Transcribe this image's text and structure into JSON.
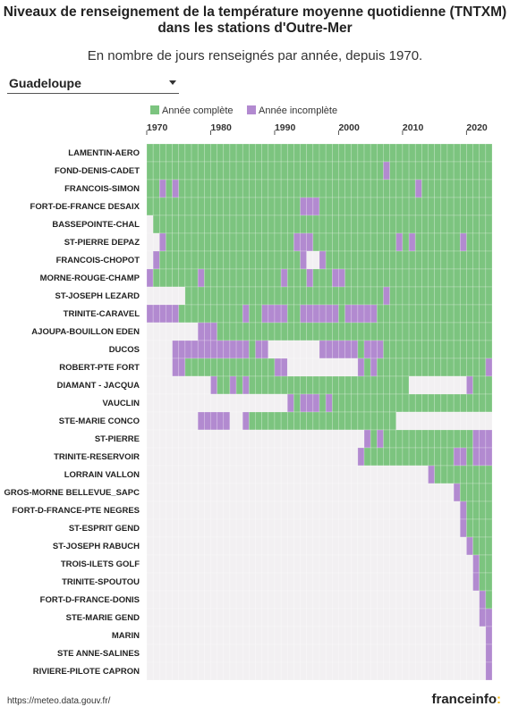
{
  "title": "Niveaux de renseignement de la température moyenne quotidienne (TNTXM) dans les stations d'Outre-Mer",
  "subtitle": "En nombre de jours renseignés par année, depuis 1970.",
  "selector": {
    "value": "Guadeloupe"
  },
  "source": "https://meteo.data.gouv.fr/",
  "brand": {
    "name": "franceinfo",
    "suffix": ":"
  },
  "colors": {
    "complete": "#7cc47f",
    "incomplete": "#b28ad0",
    "empty": "#f2f0f2"
  },
  "chart_data": {
    "type": "heatmap",
    "x_start": 1970,
    "x_end": 2023,
    "x_ticks": [
      1970,
      1980,
      1990,
      2000,
      2010,
      2020
    ],
    "legend": [
      {
        "key": "C",
        "label": "Année complète"
      },
      {
        "key": "I",
        "label": "Année incomplète"
      }
    ],
    "codes": {
      "C": "Année complète",
      "I": "Année incomplète",
      "E": "aucune donnée"
    },
    "rows": [
      {
        "station": "LAMENTIN-AERO",
        "spans": [
          [
            "C",
            1970,
            2023
          ]
        ]
      },
      {
        "station": "FOND-DENIS-CADET",
        "spans": [
          [
            "C",
            1970,
            2006
          ],
          [
            "I",
            2007,
            2007
          ],
          [
            "C",
            2008,
            2023
          ]
        ]
      },
      {
        "station": "FRANCOIS-SIMON",
        "spans": [
          [
            "C",
            1970,
            1971
          ],
          [
            "I",
            1972,
            1972
          ],
          [
            "C",
            1973,
            1973
          ],
          [
            "I",
            1974,
            1974
          ],
          [
            "C",
            1975,
            2011
          ],
          [
            "I",
            2012,
            2012
          ],
          [
            "C",
            2013,
            2023
          ]
        ]
      },
      {
        "station": "FORT-DE-FRANCE DESAIX",
        "spans": [
          [
            "C",
            1970,
            1993
          ],
          [
            "I",
            1994,
            1996
          ],
          [
            "C",
            1997,
            2023
          ]
        ]
      },
      {
        "station": "BASSEPOINTE-CHAL",
        "spans": [
          [
            "E",
            1970,
            1970
          ],
          [
            "C",
            1971,
            2023
          ]
        ]
      },
      {
        "station": "ST-PIERRE DEPAZ",
        "spans": [
          [
            "E",
            1970,
            1971
          ],
          [
            "I",
            1972,
            1972
          ],
          [
            "C",
            1973,
            1992
          ],
          [
            "I",
            1993,
            1995
          ],
          [
            "C",
            1996,
            2008
          ],
          [
            "I",
            2009,
            2009
          ],
          [
            "C",
            2010,
            2010
          ],
          [
            "I",
            2011,
            2011
          ],
          [
            "C",
            2012,
            2018
          ],
          [
            "I",
            2019,
            2019
          ],
          [
            "C",
            2020,
            2023
          ]
        ]
      },
      {
        "station": "FRANCOIS-CHOPOT",
        "spans": [
          [
            "E",
            1970,
            1970
          ],
          [
            "I",
            1971,
            1971
          ],
          [
            "C",
            1972,
            1993
          ],
          [
            "I",
            1994,
            1994
          ],
          [
            "E",
            1995,
            1996
          ],
          [
            "I",
            1997,
            1997
          ],
          [
            "C",
            1998,
            2023
          ]
        ]
      },
      {
        "station": "MORNE-ROUGE-CHAMP",
        "spans": [
          [
            "I",
            1970,
            1970
          ],
          [
            "C",
            1971,
            1977
          ],
          [
            "I",
            1978,
            1978
          ],
          [
            "C",
            1979,
            1990
          ],
          [
            "I",
            1991,
            1991
          ],
          [
            "C",
            1992,
            1994
          ],
          [
            "I",
            1995,
            1995
          ],
          [
            "C",
            1996,
            1998
          ],
          [
            "I",
            1999,
            2000
          ],
          [
            "C",
            2001,
            2023
          ]
        ]
      },
      {
        "station": "ST-JOSEPH LEZARD",
        "spans": [
          [
            "E",
            1970,
            1975
          ],
          [
            "C",
            1976,
            2006
          ],
          [
            "I",
            2007,
            2007
          ],
          [
            "C",
            2008,
            2023
          ]
        ]
      },
      {
        "station": "TRINITE-CARAVEL",
        "spans": [
          [
            "I",
            1970,
            1974
          ],
          [
            "C",
            1975,
            1984
          ],
          [
            "I",
            1985,
            1985
          ],
          [
            "C",
            1986,
            1987
          ],
          [
            "I",
            1988,
            1991
          ],
          [
            "C",
            1992,
            1993
          ],
          [
            "I",
            1994,
            1999
          ],
          [
            "C",
            2000,
            2000
          ],
          [
            "I",
            2001,
            2005
          ],
          [
            "C",
            2006,
            2023
          ]
        ]
      },
      {
        "station": "AJOUPA-BOUILLON EDEN",
        "spans": [
          [
            "E",
            1970,
            1977
          ],
          [
            "I",
            1978,
            1980
          ],
          [
            "C",
            1981,
            2023
          ]
        ]
      },
      {
        "station": "DUCOS",
        "spans": [
          [
            "E",
            1970,
            1973
          ],
          [
            "I",
            1974,
            1985
          ],
          [
            "C",
            1986,
            1986
          ],
          [
            "I",
            1987,
            1988
          ],
          [
            "E",
            1989,
            1996
          ],
          [
            "I",
            1997,
            2002
          ],
          [
            "C",
            2003,
            2003
          ],
          [
            "I",
            2004,
            2006
          ],
          [
            "C",
            2007,
            2023
          ]
        ]
      },
      {
        "station": "ROBERT-PTE FORT",
        "spans": [
          [
            "E",
            1970,
            1973
          ],
          [
            "I",
            1974,
            1975
          ],
          [
            "C",
            1976,
            1989
          ],
          [
            "I",
            1990,
            1991
          ],
          [
            "E",
            1992,
            2002
          ],
          [
            "I",
            2003,
            2003
          ],
          [
            "C",
            2004,
            2004
          ],
          [
            "I",
            2005,
            2005
          ],
          [
            "C",
            2006,
            2022
          ],
          [
            "I",
            2023,
            2023
          ]
        ]
      },
      {
        "station": "DIAMANT - JACQUA",
        "spans": [
          [
            "E",
            1970,
            1979
          ],
          [
            "I",
            1980,
            1980
          ],
          [
            "C",
            1981,
            1982
          ],
          [
            "I",
            1983,
            1983
          ],
          [
            "C",
            1984,
            1984
          ],
          [
            "I",
            1985,
            1985
          ],
          [
            "C",
            1986,
            2010
          ],
          [
            "E",
            2011,
            2019
          ],
          [
            "I",
            2020,
            2020
          ],
          [
            "C",
            2021,
            2023
          ]
        ]
      },
      {
        "station": "VAUCLIN",
        "spans": [
          [
            "E",
            1970,
            1991
          ],
          [
            "I",
            1992,
            1992
          ],
          [
            "C",
            1993,
            1993
          ],
          [
            "I",
            1994,
            1996
          ],
          [
            "C",
            1997,
            1997
          ],
          [
            "I",
            1998,
            1998
          ],
          [
            "C",
            1999,
            2023
          ]
        ]
      },
      {
        "station": "STE-MARIE CONCO",
        "spans": [
          [
            "E",
            1970,
            1977
          ],
          [
            "I",
            1978,
            1982
          ],
          [
            "E",
            1983,
            1984
          ],
          [
            "I",
            1985,
            1985
          ],
          [
            "C",
            1986,
            2008
          ],
          [
            "E",
            2009,
            2023
          ]
        ]
      },
      {
        "station": "ST-PIERRE",
        "spans": [
          [
            "E",
            1970,
            2003
          ],
          [
            "I",
            2004,
            2004
          ],
          [
            "C",
            2005,
            2005
          ],
          [
            "I",
            2006,
            2006
          ],
          [
            "C",
            2007,
            2020
          ],
          [
            "I",
            2021,
            2023
          ]
        ]
      },
      {
        "station": "TRINITE-RESERVOIR",
        "spans": [
          [
            "E",
            1970,
            2002
          ],
          [
            "I",
            2003,
            2003
          ],
          [
            "C",
            2004,
            2017
          ],
          [
            "I",
            2018,
            2019
          ],
          [
            "C",
            2020,
            2020
          ],
          [
            "I",
            2021,
            2023
          ]
        ]
      },
      {
        "station": "LORRAIN VALLON",
        "spans": [
          [
            "E",
            1970,
            2013
          ],
          [
            "I",
            2014,
            2014
          ],
          [
            "C",
            2015,
            2023
          ]
        ]
      },
      {
        "station": "GROS-MORNE BELLEVUE_SAPC",
        "spans": [
          [
            "E",
            1970,
            2017
          ],
          [
            "I",
            2018,
            2018
          ],
          [
            "C",
            2019,
            2023
          ]
        ]
      },
      {
        "station": "FORT-D-FRANCE-PTE NEGRES",
        "spans": [
          [
            "E",
            1970,
            2018
          ],
          [
            "I",
            2019,
            2019
          ],
          [
            "C",
            2020,
            2023
          ]
        ]
      },
      {
        "station": "ST-ESPRIT GEND",
        "spans": [
          [
            "E",
            1970,
            2018
          ],
          [
            "I",
            2019,
            2019
          ],
          [
            "C",
            2020,
            2023
          ]
        ]
      },
      {
        "station": "ST-JOSEPH RABUCH",
        "spans": [
          [
            "E",
            1970,
            2019
          ],
          [
            "I",
            2020,
            2020
          ],
          [
            "C",
            2021,
            2023
          ]
        ]
      },
      {
        "station": "TROIS-ILETS GOLF",
        "spans": [
          [
            "E",
            1970,
            2020
          ],
          [
            "I",
            2021,
            2021
          ],
          [
            "C",
            2022,
            2023
          ]
        ]
      },
      {
        "station": "TRINITE-SPOUTOU",
        "spans": [
          [
            "E",
            1970,
            2020
          ],
          [
            "I",
            2021,
            2021
          ],
          [
            "C",
            2022,
            2023
          ]
        ]
      },
      {
        "station": "FORT-D-FRANCE-DONIS",
        "spans": [
          [
            "E",
            1970,
            2021
          ],
          [
            "I",
            2022,
            2022
          ],
          [
            "C",
            2023,
            2023
          ]
        ]
      },
      {
        "station": "STE-MARIE GEND",
        "spans": [
          [
            "E",
            1970,
            2021
          ],
          [
            "I",
            2022,
            2023
          ]
        ]
      },
      {
        "station": "MARIN",
        "spans": [
          [
            "E",
            1970,
            2022
          ],
          [
            "I",
            2023,
            2023
          ]
        ]
      },
      {
        "station": "STE ANNE-SALINES",
        "spans": [
          [
            "E",
            1970,
            2022
          ],
          [
            "I",
            2023,
            2023
          ]
        ]
      },
      {
        "station": "RIVIERE-PILOTE CAPRON",
        "spans": [
          [
            "E",
            1970,
            2022
          ],
          [
            "I",
            2023,
            2023
          ]
        ]
      }
    ]
  }
}
